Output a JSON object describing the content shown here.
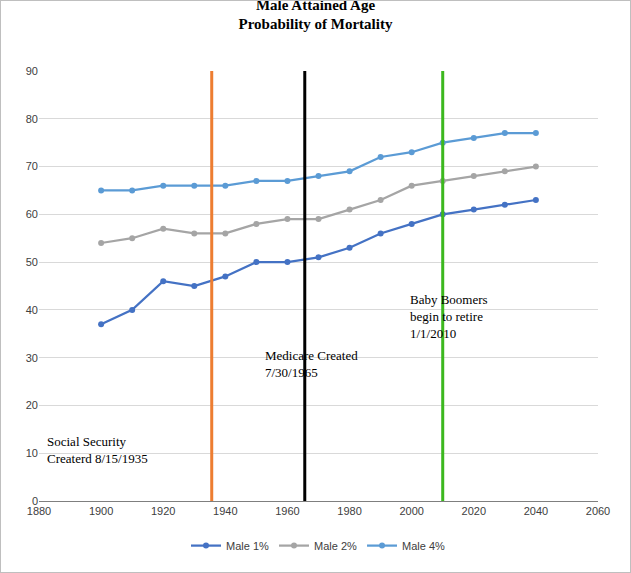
{
  "chart_data": {
    "type": "line",
    "title": "Male Attained Age\nProbability of Mortality",
    "x": [
      1900,
      1910,
      1920,
      1930,
      1940,
      1950,
      1960,
      1970,
      1980,
      1990,
      2000,
      2010,
      2020,
      2030,
      2040
    ],
    "series": [
      {
        "name": "Male 1%",
        "color": "#4472c4",
        "values": [
          37,
          40,
          46,
          45,
          47,
          50,
          50,
          51,
          53,
          56,
          58,
          60,
          61,
          62,
          63
        ]
      },
      {
        "name": "Male 2%",
        "color": "#a5a5a5",
        "values": [
          54,
          55,
          57,
          56,
          56,
          58,
          59,
          59,
          61,
          63,
          66,
          67,
          68,
          69,
          70
        ]
      },
      {
        "name": "Male 4%",
        "color": "#5b9bd5",
        "values": [
          65,
          65,
          66,
          66,
          66,
          67,
          67,
          68,
          69,
          72,
          73,
          75,
          76,
          77,
          77
        ]
      }
    ],
    "xlim": [
      1880,
      2060
    ],
    "xticks": [
      1880,
      1900,
      1920,
      1940,
      1960,
      1980,
      2000,
      2020,
      2040,
      2060
    ],
    "ylim": [
      0,
      90
    ],
    "yticks": [
      0,
      10,
      20,
      30,
      40,
      50,
      60,
      70,
      80,
      90
    ],
    "grid": true,
    "legend": "bottom",
    "marker": "circle",
    "reference_lines": [
      {
        "x": 1935.62,
        "color": "#ed7d31",
        "text": "Social Security\nCreaterd 8/15/1935"
      },
      {
        "x": 1965.58,
        "color": "#000000",
        "text": "Medicare Created\n7/30/1965"
      },
      {
        "x": 2010,
        "color": "#3cb81e",
        "text": "Baby Boomers\nbegin to retire\n1/1/2010"
      }
    ]
  }
}
